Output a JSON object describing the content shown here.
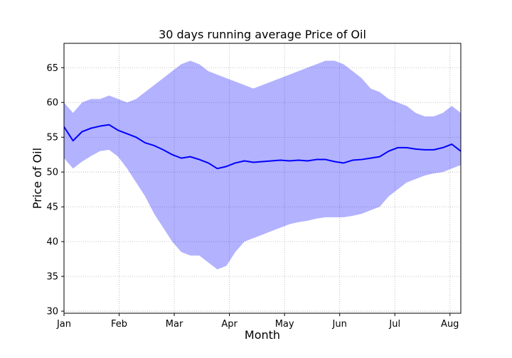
{
  "chart_data": {
    "type": "line",
    "title": "30 days running average Price of Oil",
    "xlabel": "Month",
    "ylabel": "Price of Oil",
    "x_tick_labels": [
      "Jan",
      "Feb",
      "Mar",
      "Apr",
      "May",
      "Jun",
      "Jul",
      "Aug"
    ],
    "y_ticks": [
      30,
      35,
      40,
      45,
      50,
      55,
      60,
      65
    ],
    "xlim": [
      0,
      220
    ],
    "ylim": [
      29.7,
      68.5
    ],
    "grid": true,
    "legend": "none",
    "colors": {
      "line": "#0000ff",
      "band_fill": "#0000ff",
      "band_opacity": 0.3,
      "grid": "#b0b0b0",
      "axes": "#000000"
    },
    "series": [
      {
        "type": "line",
        "x": [
          0,
          5,
          10,
          15,
          20,
          25,
          30,
          35,
          40,
          45,
          50,
          55,
          60,
          65,
          70,
          75,
          80,
          85,
          90,
          95,
          100,
          105,
          110,
          115,
          120,
          125,
          130,
          135,
          140,
          145,
          150,
          155,
          160,
          165,
          170,
          175,
          180,
          185,
          190,
          195,
          200,
          205,
          210,
          215,
          220
        ],
        "mean": [
          56.5,
          54.5,
          55.8,
          56.3,
          56.6,
          56.8,
          56.0,
          55.5,
          55.0,
          54.2,
          53.8,
          53.2,
          52.5,
          52.0,
          52.2,
          51.8,
          51.3,
          50.5,
          50.8,
          51.3,
          51.6,
          51.4,
          51.5,
          51.6,
          51.7,
          51.6,
          51.7,
          51.6,
          51.8,
          51.8,
          51.5,
          51.3,
          51.7,
          51.8,
          52.0,
          52.2,
          53.0,
          53.5,
          53.5,
          53.3,
          53.2,
          53.2,
          53.5,
          54.0,
          53.0
        ],
        "lower": [
          52.0,
          50.5,
          51.5,
          52.3,
          53.0,
          53.2,
          52.2,
          50.5,
          48.5,
          46.5,
          44.0,
          42.0,
          40.0,
          38.5,
          38.0,
          38.0,
          37.0,
          36.0,
          36.5,
          38.5,
          40.0,
          40.5,
          41.0,
          41.5,
          42.0,
          42.5,
          42.8,
          43.0,
          43.3,
          43.5,
          43.5,
          43.5,
          43.7,
          44.0,
          44.5,
          45.0,
          46.5,
          47.5,
          48.5,
          49.0,
          49.5,
          49.8,
          50.0,
          50.5,
          51.0
        ],
        "upper": [
          60.0,
          58.5,
          60.0,
          60.5,
          60.5,
          61.0,
          60.5,
          60.0,
          60.5,
          61.5,
          62.5,
          63.5,
          64.5,
          65.5,
          66.0,
          65.5,
          64.5,
          64.0,
          63.5,
          63.0,
          62.5,
          62.0,
          62.5,
          63.0,
          63.5,
          64.0,
          64.5,
          65.0,
          65.5,
          66.0,
          66.0,
          65.5,
          64.5,
          63.5,
          62.0,
          61.5,
          60.5,
          60.0,
          59.5,
          58.5,
          58.0,
          58.0,
          58.5,
          59.5,
          58.5
        ]
      }
    ]
  }
}
